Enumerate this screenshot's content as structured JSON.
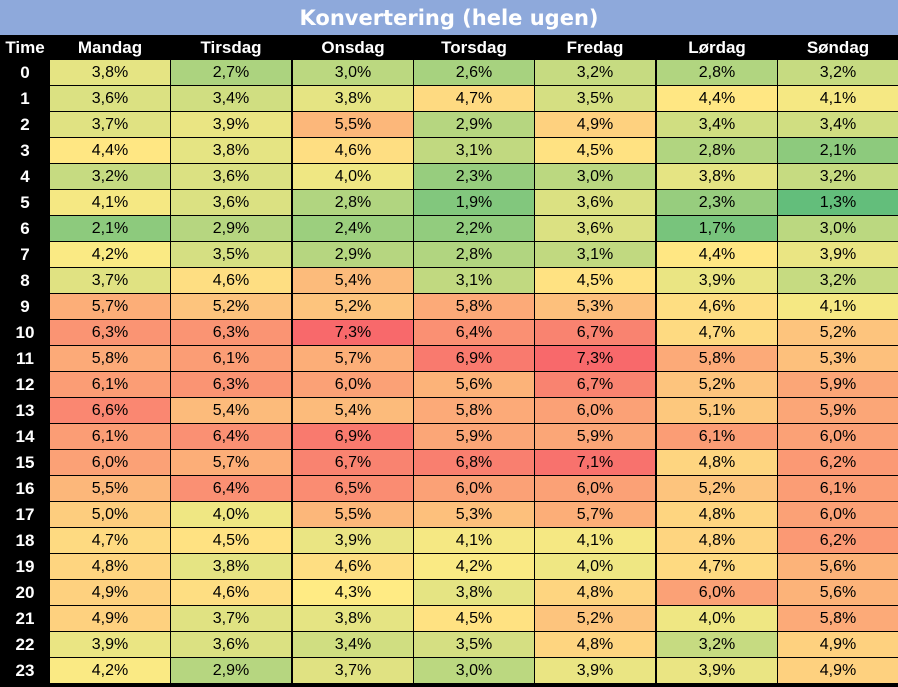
{
  "chart_data": {
    "type": "heatmap",
    "title": "Konvertering (hele ugen)",
    "row_header_label": "Time",
    "columns": [
      "Mandag",
      "Tirsdag",
      "Onsdag",
      "Torsdag",
      "Fredag",
      "Lørdag",
      "Søndag"
    ],
    "rows": [
      "0",
      "1",
      "2",
      "3",
      "4",
      "5",
      "6",
      "7",
      "8",
      "9",
      "10",
      "11",
      "12",
      "13",
      "14",
      "15",
      "16",
      "17",
      "18",
      "19",
      "20",
      "21",
      "22",
      "23"
    ],
    "values": [
      [
        3.8,
        2.7,
        3.0,
        2.6,
        3.2,
        2.8,
        3.2
      ],
      [
        3.6,
        3.4,
        3.8,
        4.7,
        3.5,
        4.4,
        4.1
      ],
      [
        3.7,
        3.9,
        5.5,
        2.9,
        4.9,
        3.4,
        3.4
      ],
      [
        4.4,
        3.8,
        4.6,
        3.1,
        4.5,
        2.8,
        2.1
      ],
      [
        3.2,
        3.6,
        4.0,
        2.3,
        3.0,
        3.8,
        3.2
      ],
      [
        4.1,
        3.6,
        2.8,
        1.9,
        3.6,
        2.3,
        1.3
      ],
      [
        2.1,
        2.9,
        2.4,
        2.2,
        3.6,
        1.7,
        3.0
      ],
      [
        4.2,
        3.5,
        2.9,
        2.8,
        3.1,
        4.4,
        3.9
      ],
      [
        3.7,
        4.6,
        5.4,
        3.1,
        4.5,
        3.9,
        3.2
      ],
      [
        5.7,
        5.2,
        5.2,
        5.8,
        5.3,
        4.6,
        4.1
      ],
      [
        6.3,
        6.3,
        7.3,
        6.4,
        6.7,
        4.7,
        5.2
      ],
      [
        5.8,
        6.1,
        5.7,
        6.9,
        7.3,
        5.8,
        5.3
      ],
      [
        6.1,
        6.3,
        6.0,
        5.6,
        6.7,
        5.2,
        5.9
      ],
      [
        6.6,
        5.4,
        5.4,
        5.8,
        6.0,
        5.1,
        5.9
      ],
      [
        6.1,
        6.4,
        6.9,
        5.9,
        5.9,
        6.1,
        6.0
      ],
      [
        6.0,
        5.7,
        6.7,
        6.8,
        7.1,
        4.8,
        6.2
      ],
      [
        5.5,
        6.4,
        6.5,
        6.0,
        6.0,
        5.2,
        6.1
      ],
      [
        5.0,
        4.0,
        5.5,
        5.3,
        5.7,
        4.8,
        6.0
      ],
      [
        4.7,
        4.5,
        3.9,
        4.1,
        4.1,
        4.8,
        6.2
      ],
      [
        4.8,
        3.8,
        4.6,
        4.2,
        4.0,
        4.7,
        5.6
      ],
      [
        4.9,
        4.6,
        4.3,
        3.8,
        4.8,
        6.0,
        5.6
      ],
      [
        4.9,
        3.7,
        3.8,
        4.5,
        5.2,
        4.0,
        5.8
      ],
      [
        3.9,
        3.6,
        3.4,
        3.5,
        4.8,
        3.2,
        4.9
      ],
      [
        4.2,
        2.9,
        3.7,
        3.0,
        3.9,
        3.9,
        4.9
      ]
    ],
    "value_suffix": "%",
    "decimal_separator": ",",
    "color_scale": {
      "min": 1.3,
      "mid": 4.3,
      "max": 7.3,
      "min_color": "#63BE7B",
      "mid_color": "#FFEB84",
      "max_color": "#F8696B"
    },
    "colors": {
      "title_background": "#8EA9DB",
      "title_text": "#FFFFFF",
      "header_background": "#000000",
      "header_text": "#FFFFFF"
    }
  }
}
